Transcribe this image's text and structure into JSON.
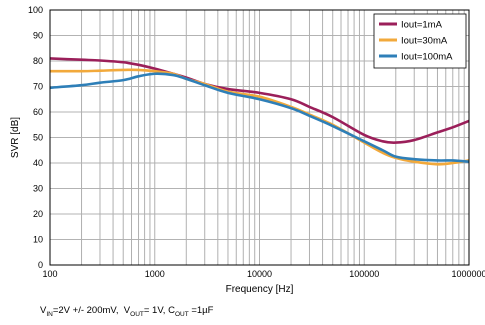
{
  "chart_data": {
    "type": "line",
    "xlabel": "Frequency [Hz]",
    "ylabel": "SVR [dB]",
    "xscale": "log",
    "xlim": [
      100,
      1000000
    ],
    "ylim": [
      0,
      100
    ],
    "x_ticks": [
      "100",
      "1000",
      "10000",
      "100000",
      "1000000"
    ],
    "y_ticks": [
      "0",
      "10",
      "20",
      "30",
      "40",
      "50",
      "60",
      "70",
      "80",
      "90",
      "100"
    ],
    "grid": true,
    "legend_position": "top-right",
    "series": [
      {
        "name": "Iout=1mA",
        "color": "#9b1f5a",
        "x": [
          100,
          200,
          300,
          500,
          700,
          1000,
          1500,
          2000,
          3000,
          5000,
          10000,
          20000,
          30000,
          50000,
          100000,
          150000,
          200000,
          300000,
          500000,
          700000,
          1000000
        ],
        "y": [
          81,
          80.5,
          80.2,
          79.5,
          78.5,
          77,
          75,
          73.5,
          71,
          69,
          67.5,
          65,
          62,
          58,
          51,
          48.5,
          48,
          49,
          52,
          54,
          56.5
        ]
      },
      {
        "name": "Iout=30mA",
        "color": "#f2a93b",
        "x": [
          100,
          200,
          300,
          500,
          700,
          1000,
          1500,
          2000,
          3000,
          5000,
          10000,
          20000,
          30000,
          50000,
          100000,
          150000,
          200000,
          300000,
          500000,
          700000,
          1000000
        ],
        "y": [
          76,
          76,
          76.2,
          76.5,
          76.5,
          76,
          75,
          73,
          71,
          68,
          66,
          62,
          59,
          55,
          48,
          44,
          42,
          40.5,
          39.5,
          40,
          41
        ]
      },
      {
        "name": "Iout=100mA",
        "color": "#2e7fb8",
        "x": [
          100,
          200,
          300,
          500,
          700,
          1000,
          1500,
          2000,
          3000,
          5000,
          10000,
          20000,
          30000,
          50000,
          100000,
          150000,
          200000,
          300000,
          500000,
          700000,
          1000000
        ],
        "y": [
          69.5,
          70.5,
          71.5,
          72.5,
          74,
          75,
          74.5,
          73,
          70.5,
          67.5,
          65,
          61.5,
          58.5,
          54.5,
          48.5,
          45,
          42.5,
          41.5,
          41,
          41,
          40.5
        ]
      }
    ]
  },
  "footnote": {
    "vin_label": "V",
    "vin_sub": "IN",
    "vin_value": "=2V +/- 200mV,",
    "vout_label": "V",
    "vout_sub": "OUT",
    "vout_value": "= 1V, C",
    "cout_sub": "OUT",
    "cout_value": " =1µF"
  }
}
